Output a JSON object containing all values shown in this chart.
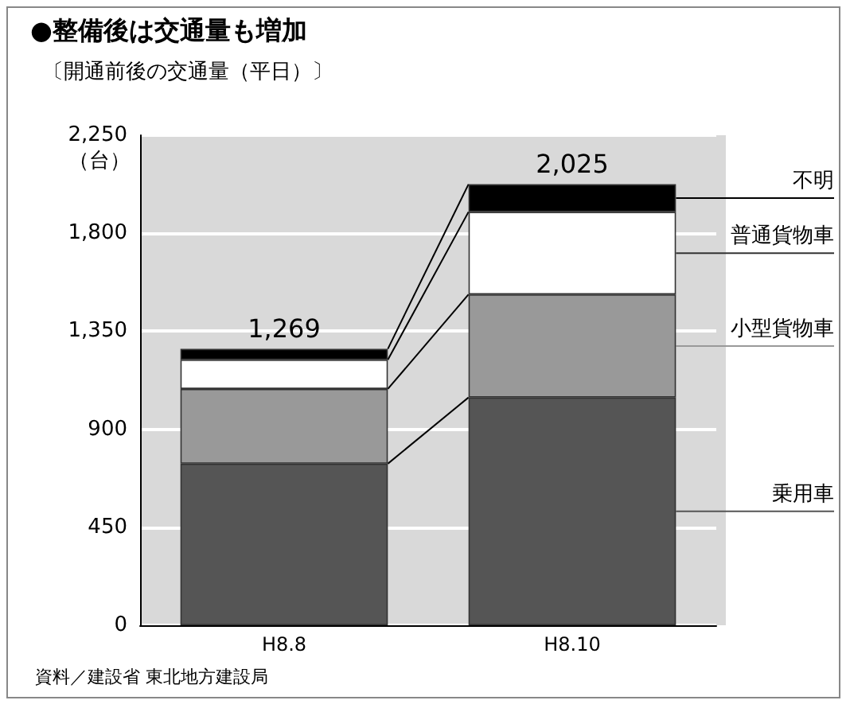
{
  "chart_data": {
    "type": "bar",
    "title": "●整備後は交通量も増加",
    "subtitle": "〔開通前後の交通量（平日）〕",
    "ylabel": "（台）",
    "categories": [
      "H8.8",
      "H8.10"
    ],
    "stacked": true,
    "series": [
      {
        "name": "乗用車",
        "color": "#555555",
        "values": [
          742,
          1046
        ]
      },
      {
        "name": "小型貨物車",
        "color": "#999999",
        "values": [
          343,
          473
        ]
      },
      {
        "name": "普通貨物車",
        "color": "#ffffff",
        "values": [
          134,
          379
        ]
      },
      {
        "name": "不明",
        "color": "#000000",
        "values": [
          50,
          127
        ]
      }
    ],
    "totals": [
      "1,269",
      "2,025"
    ],
    "ylim": [
      0,
      2250
    ],
    "yticks": [
      0,
      450,
      900,
      {
        "value": 1350,
        "label": "1,350"
      },
      {
        "value": 1800,
        "label": "1,800"
      },
      {
        "value": 2250,
        "label": "2,250"
      }
    ],
    "grid": "y",
    "legend": "right",
    "annotations": [
      "資料／建設省 東北地方建設局"
    ]
  }
}
